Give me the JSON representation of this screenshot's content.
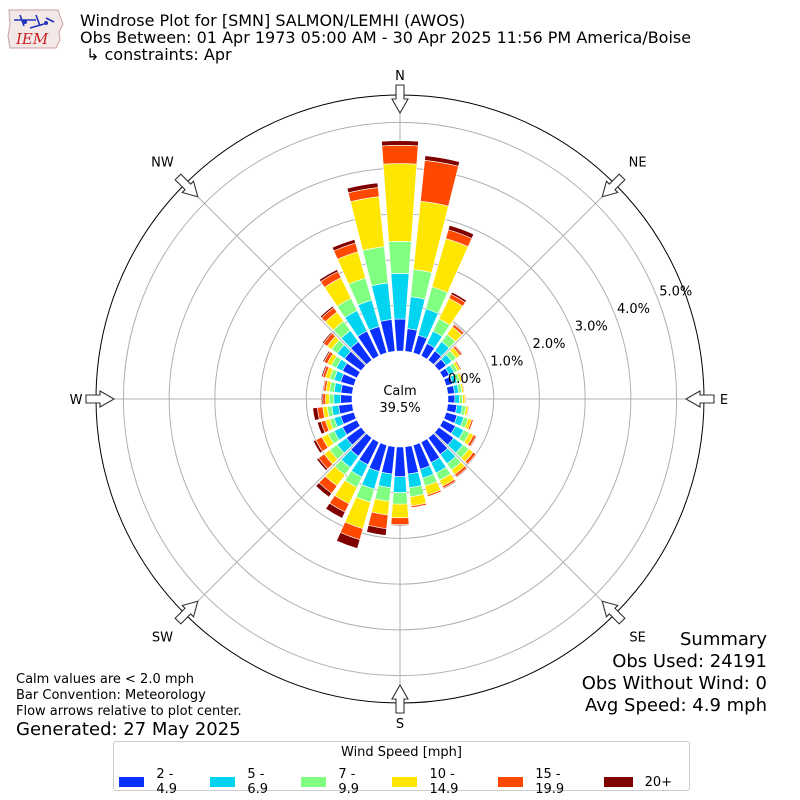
{
  "header": {
    "title": "Windrose Plot for [SMN] SALMON/LEMHI (AWOS)",
    "subtitle": "Obs Between: 01 Apr 1973 05:00 AM - 30 Apr 2025 11:56 PM America/Boise",
    "constraints": "↳ constraints: Apr",
    "logo_text": "IEM"
  },
  "footer": {
    "calm_note": "Calm values are < 2.0 mph",
    "bar_convention": "Bar Convention: Meteorology",
    "flow_note": "Flow arrows relative to plot center.",
    "generated": "Generated: 27 May 2025"
  },
  "summary": {
    "title": "Summary",
    "obs_used": "Obs Used: 24191",
    "obs_without_wind": "Obs Without Wind: 0",
    "avg_speed": "Avg Speed: 4.9 mph"
  },
  "legend": {
    "title": "Wind Speed [mph]",
    "items": [
      {
        "label": "2 - 4.9",
        "color": "#0a30ff"
      },
      {
        "label": "5 - 6.9",
        "color": "#00d4f0"
      },
      {
        "label": "7 - 9.9",
        "color": "#80ff80"
      },
      {
        "label": "10 - 14.9",
        "color": "#ffe600"
      },
      {
        "label": "15 - 19.9",
        "color": "#ff4800"
      },
      {
        "label": "20+",
        "color": "#800000"
      }
    ]
  },
  "chart_data": {
    "type": "windrose",
    "calm": {
      "label": "Calm",
      "value": "39.5%"
    },
    "radial_ticks": [
      0,
      1,
      2,
      3,
      4,
      5
    ],
    "radial_tick_labels": [
      "0.0%",
      "1.0%",
      "2.0%",
      "3.0%",
      "4.0%",
      "5.0%"
    ],
    "radial_max": 5.6,
    "directions": [
      "N",
      "NE",
      "E",
      "SE",
      "S",
      "SW",
      "W",
      "NW"
    ],
    "bins": [
      "2 - 4.9",
      "5 - 6.9",
      "7 - 9.9",
      "10 - 14.9",
      "15 - 19.9",
      "20+"
    ],
    "sector_width_deg": 10,
    "units": "percent of observations",
    "sectors": [
      {
        "dir": 0,
        "values": [
          0.7,
          1.0,
          0.7,
          1.7,
          0.4,
          0.1
        ]
      },
      {
        "dir": 10,
        "values": [
          0.5,
          0.7,
          0.6,
          1.5,
          0.9,
          0.1
        ]
      },
      {
        "dir": 20,
        "values": [
          0.4,
          0.6,
          0.5,
          1.1,
          0.2,
          0.1
        ]
      },
      {
        "dir": 30,
        "values": [
          0.3,
          0.3,
          0.3,
          0.5,
          0.1,
          0.05
        ]
      },
      {
        "dir": 40,
        "values": [
          0.25,
          0.25,
          0.2,
          0.2,
          0.06,
          0.02
        ]
      },
      {
        "dir": 50,
        "values": [
          0.2,
          0.15,
          0.12,
          0.1,
          0.05,
          0.02
        ]
      },
      {
        "dir": 60,
        "values": [
          0.15,
          0.12,
          0.08,
          0.06,
          0.03,
          0.01
        ]
      },
      {
        "dir": 70,
        "values": [
          0.15,
          0.1,
          0.07,
          0.05,
          0.02,
          0.01
        ]
      },
      {
        "dir": 80,
        "values": [
          0.15,
          0.09,
          0.07,
          0.04,
          0.02,
          0.01
        ]
      },
      {
        "dir": 90,
        "values": [
          0.15,
          0.1,
          0.07,
          0.05,
          0.02,
          0.01
        ]
      },
      {
        "dir": 100,
        "values": [
          0.2,
          0.12,
          0.08,
          0.05,
          0.02,
          0.01
        ]
      },
      {
        "dir": 110,
        "values": [
          0.25,
          0.15,
          0.1,
          0.08,
          0.04,
          0.01
        ]
      },
      {
        "dir": 120,
        "values": [
          0.3,
          0.2,
          0.14,
          0.1,
          0.06,
          0.02
        ]
      },
      {
        "dir": 130,
        "values": [
          0.4,
          0.25,
          0.16,
          0.12,
          0.07,
          0.02
        ]
      },
      {
        "dir": 140,
        "values": [
          0.45,
          0.25,
          0.17,
          0.12,
          0.06,
          0.02
        ]
      },
      {
        "dir": 150,
        "values": [
          0.5,
          0.25,
          0.18,
          0.14,
          0.05,
          0.02
        ]
      },
      {
        "dir": 160,
        "values": [
          0.55,
          0.2,
          0.18,
          0.2,
          0.04,
          0.01
        ]
      },
      {
        "dir": 170,
        "values": [
          0.6,
          0.3,
          0.2,
          0.2,
          0.04,
          0.01
        ]
      },
      {
        "dir": 180,
        "values": [
          0.65,
          0.35,
          0.25,
          0.3,
          0.15,
          0.02
        ]
      },
      {
        "dir": 190,
        "values": [
          0.6,
          0.3,
          0.3,
          0.3,
          0.3,
          0.15
        ]
      },
      {
        "dir": 200,
        "values": [
          0.6,
          0.4,
          0.3,
          0.6,
          0.25,
          0.2
        ]
      },
      {
        "dir": 210,
        "values": [
          0.55,
          0.3,
          0.25,
          0.4,
          0.2,
          0.15
        ]
      },
      {
        "dir": 220,
        "values": [
          0.5,
          0.3,
          0.2,
          0.3,
          0.2,
          0.1
        ]
      },
      {
        "dir": 230,
        "values": [
          0.4,
          0.25,
          0.2,
          0.15,
          0.15,
          0.05
        ]
      },
      {
        "dir": 240,
        "values": [
          0.35,
          0.2,
          0.15,
          0.15,
          0.15,
          0.06
        ]
      },
      {
        "dir": 250,
        "values": [
          0.3,
          0.15,
          0.1,
          0.1,
          0.1,
          0.08
        ]
      },
      {
        "dir": 260,
        "values": [
          0.3,
          0.15,
          0.1,
          0.1,
          0.12,
          0.1
        ]
      },
      {
        "dir": 270,
        "values": [
          0.25,
          0.15,
          0.1,
          0.08,
          0.06,
          0.03
        ]
      },
      {
        "dir": 280,
        "values": [
          0.25,
          0.15,
          0.1,
          0.08,
          0.05,
          0.02
        ]
      },
      {
        "dir": 290,
        "values": [
          0.3,
          0.15,
          0.1,
          0.1,
          0.06,
          0.03
        ]
      },
      {
        "dir": 300,
        "values": [
          0.35,
          0.15,
          0.12,
          0.1,
          0.08,
          0.03
        ]
      },
      {
        "dir": 310,
        "values": [
          0.45,
          0.2,
          0.15,
          0.12,
          0.1,
          0.03
        ]
      },
      {
        "dir": 320,
        "values": [
          0.5,
          0.3,
          0.25,
          0.25,
          0.12,
          0.04
        ]
      },
      {
        "dir": 330,
        "values": [
          0.6,
          0.5,
          0.3,
          0.5,
          0.15,
          0.05
        ]
      },
      {
        "dir": 340,
        "values": [
          0.6,
          0.6,
          0.5,
          0.6,
          0.2,
          0.08
        ]
      },
      {
        "dir": 350,
        "values": [
          0.7,
          0.8,
          0.8,
          1.1,
          0.2,
          0.1
        ]
      }
    ]
  }
}
